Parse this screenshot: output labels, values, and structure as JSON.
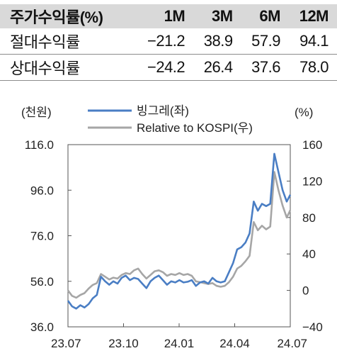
{
  "table": {
    "headers": [
      "주가수익률(%)",
      "1M",
      "3M",
      "6M",
      "12M"
    ],
    "rows": [
      {
        "label": "절대수익률",
        "values": [
          "−21.2",
          "38.9",
          "57.9",
          "94.1"
        ]
      },
      {
        "label": "상대수익률",
        "values": [
          "−24.2",
          "26.4",
          "37.6",
          "78.0"
        ]
      }
    ]
  },
  "chart_data": {
    "type": "line",
    "left_axis_label": "(천원)",
    "right_axis_label": "(%)",
    "y_left": {
      "min": 36,
      "max": 116,
      "ticks": [
        "116.0",
        "96.0",
        "76.0",
        "56.0",
        "36.0"
      ]
    },
    "y_right": {
      "min": -40,
      "max": 160,
      "ticks": [
        "160",
        "120",
        "80",
        "40",
        "0",
        "−40"
      ]
    },
    "x_ticks": [
      "23.07",
      "23.10",
      "24.01",
      "24.04",
      "24.07"
    ],
    "x_range": [
      "2023-07-01",
      "2024-07-12"
    ],
    "grid": false,
    "legend_position": "top",
    "series": [
      {
        "name": "빙그레(좌)",
        "axis": "left",
        "color": "#4a7ec4",
        "points": [
          [
            "2023-07-01",
            47.5
          ],
          [
            "2023-07-08",
            45
          ],
          [
            "2023-07-15",
            44
          ],
          [
            "2023-07-22",
            45.5
          ],
          [
            "2023-07-29",
            44.5
          ],
          [
            "2023-08-05",
            46
          ],
          [
            "2023-08-12",
            48.5
          ],
          [
            "2023-08-19",
            50
          ],
          [
            "2023-08-26",
            58
          ],
          [
            "2023-09-02",
            56
          ],
          [
            "2023-09-09",
            54.5
          ],
          [
            "2023-09-16",
            56
          ],
          [
            "2023-09-23",
            55
          ],
          [
            "2023-09-30",
            57.5
          ],
          [
            "2023-10-07",
            58.5
          ],
          [
            "2023-10-14",
            56.5
          ],
          [
            "2023-10-21",
            57.5
          ],
          [
            "2023-10-28",
            57
          ],
          [
            "2023-11-04",
            55
          ],
          [
            "2023-11-11",
            53
          ],
          [
            "2023-11-18",
            56
          ],
          [
            "2023-11-25",
            57.5
          ],
          [
            "2023-12-02",
            58.5
          ],
          [
            "2023-12-09",
            56.5
          ],
          [
            "2023-12-16",
            54.5
          ],
          [
            "2023-12-23",
            56
          ],
          [
            "2023-12-30",
            55.5
          ],
          [
            "2024-01-06",
            56.5
          ],
          [
            "2024-01-13",
            55.5
          ],
          [
            "2024-01-20",
            55.8
          ],
          [
            "2024-01-27",
            56.5
          ],
          [
            "2024-02-03",
            54
          ],
          [
            "2024-02-10",
            55.5
          ],
          [
            "2024-02-17",
            56
          ],
          [
            "2024-02-24",
            55
          ],
          [
            "2024-03-02",
            57.5
          ],
          [
            "2024-03-09",
            56
          ],
          [
            "2024-03-16",
            55.5
          ],
          [
            "2024-03-23",
            56
          ],
          [
            "2024-03-30",
            60
          ],
          [
            "2024-04-06",
            64
          ],
          [
            "2024-04-13",
            70
          ],
          [
            "2024-04-20",
            71
          ],
          [
            "2024-04-27",
            73
          ],
          [
            "2024-05-04",
            77
          ],
          [
            "2024-05-11",
            91
          ],
          [
            "2024-05-18",
            87
          ],
          [
            "2024-05-25",
            90
          ],
          [
            "2024-06-01",
            89
          ],
          [
            "2024-06-08",
            90
          ],
          [
            "2024-06-15",
            112
          ],
          [
            "2024-06-22",
            104
          ],
          [
            "2024-06-29",
            96
          ],
          [
            "2024-07-06",
            91
          ],
          [
            "2024-07-12",
            94
          ]
        ]
      },
      {
        "name": "Relative to KOSPI(우)",
        "axis": "right",
        "color": "#a6a6a6",
        "points": [
          [
            "2023-07-01",
            0
          ],
          [
            "2023-07-08",
            -6
          ],
          [
            "2023-07-15",
            -8
          ],
          [
            "2023-07-22",
            -5
          ],
          [
            "2023-07-29",
            -3
          ],
          [
            "2023-08-05",
            2
          ],
          [
            "2023-08-12",
            6
          ],
          [
            "2023-08-19",
            8
          ],
          [
            "2023-08-26",
            18
          ],
          [
            "2023-09-02",
            15
          ],
          [
            "2023-09-09",
            12
          ],
          [
            "2023-09-16",
            14
          ],
          [
            "2023-09-23",
            13
          ],
          [
            "2023-09-30",
            17
          ],
          [
            "2023-10-07",
            19
          ],
          [
            "2023-10-14",
            18
          ],
          [
            "2023-10-21",
            22
          ],
          [
            "2023-10-28",
            24
          ],
          [
            "2023-11-04",
            18
          ],
          [
            "2023-11-11",
            13
          ],
          [
            "2023-11-18",
            17
          ],
          [
            "2023-11-25",
            21
          ],
          [
            "2023-12-02",
            22
          ],
          [
            "2023-12-09",
            20
          ],
          [
            "2023-12-16",
            16
          ],
          [
            "2023-12-23",
            18
          ],
          [
            "2023-12-30",
            17
          ],
          [
            "2024-01-06",
            19
          ],
          [
            "2024-01-13",
            17
          ],
          [
            "2024-01-20",
            18
          ],
          [
            "2024-01-27",
            16
          ],
          [
            "2024-02-03",
            10
          ],
          [
            "2024-02-10",
            9
          ],
          [
            "2024-02-17",
            8
          ],
          [
            "2024-02-24",
            7
          ],
          [
            "2024-03-02",
            8
          ],
          [
            "2024-03-09",
            5
          ],
          [
            "2024-03-16",
            4
          ],
          [
            "2024-03-23",
            5
          ],
          [
            "2024-03-30",
            9
          ],
          [
            "2024-04-06",
            15
          ],
          [
            "2024-04-13",
            24
          ],
          [
            "2024-04-20",
            27
          ],
          [
            "2024-04-27",
            32
          ],
          [
            "2024-05-04",
            38
          ],
          [
            "2024-05-11",
            75
          ],
          [
            "2024-05-18",
            66
          ],
          [
            "2024-05-25",
            71
          ],
          [
            "2024-06-01",
            67
          ],
          [
            "2024-06-08",
            70
          ],
          [
            "2024-06-15",
            130
          ],
          [
            "2024-06-22",
            110
          ],
          [
            "2024-06-29",
            93
          ],
          [
            "2024-07-06",
            80
          ],
          [
            "2024-07-12",
            88
          ]
        ]
      }
    ]
  }
}
